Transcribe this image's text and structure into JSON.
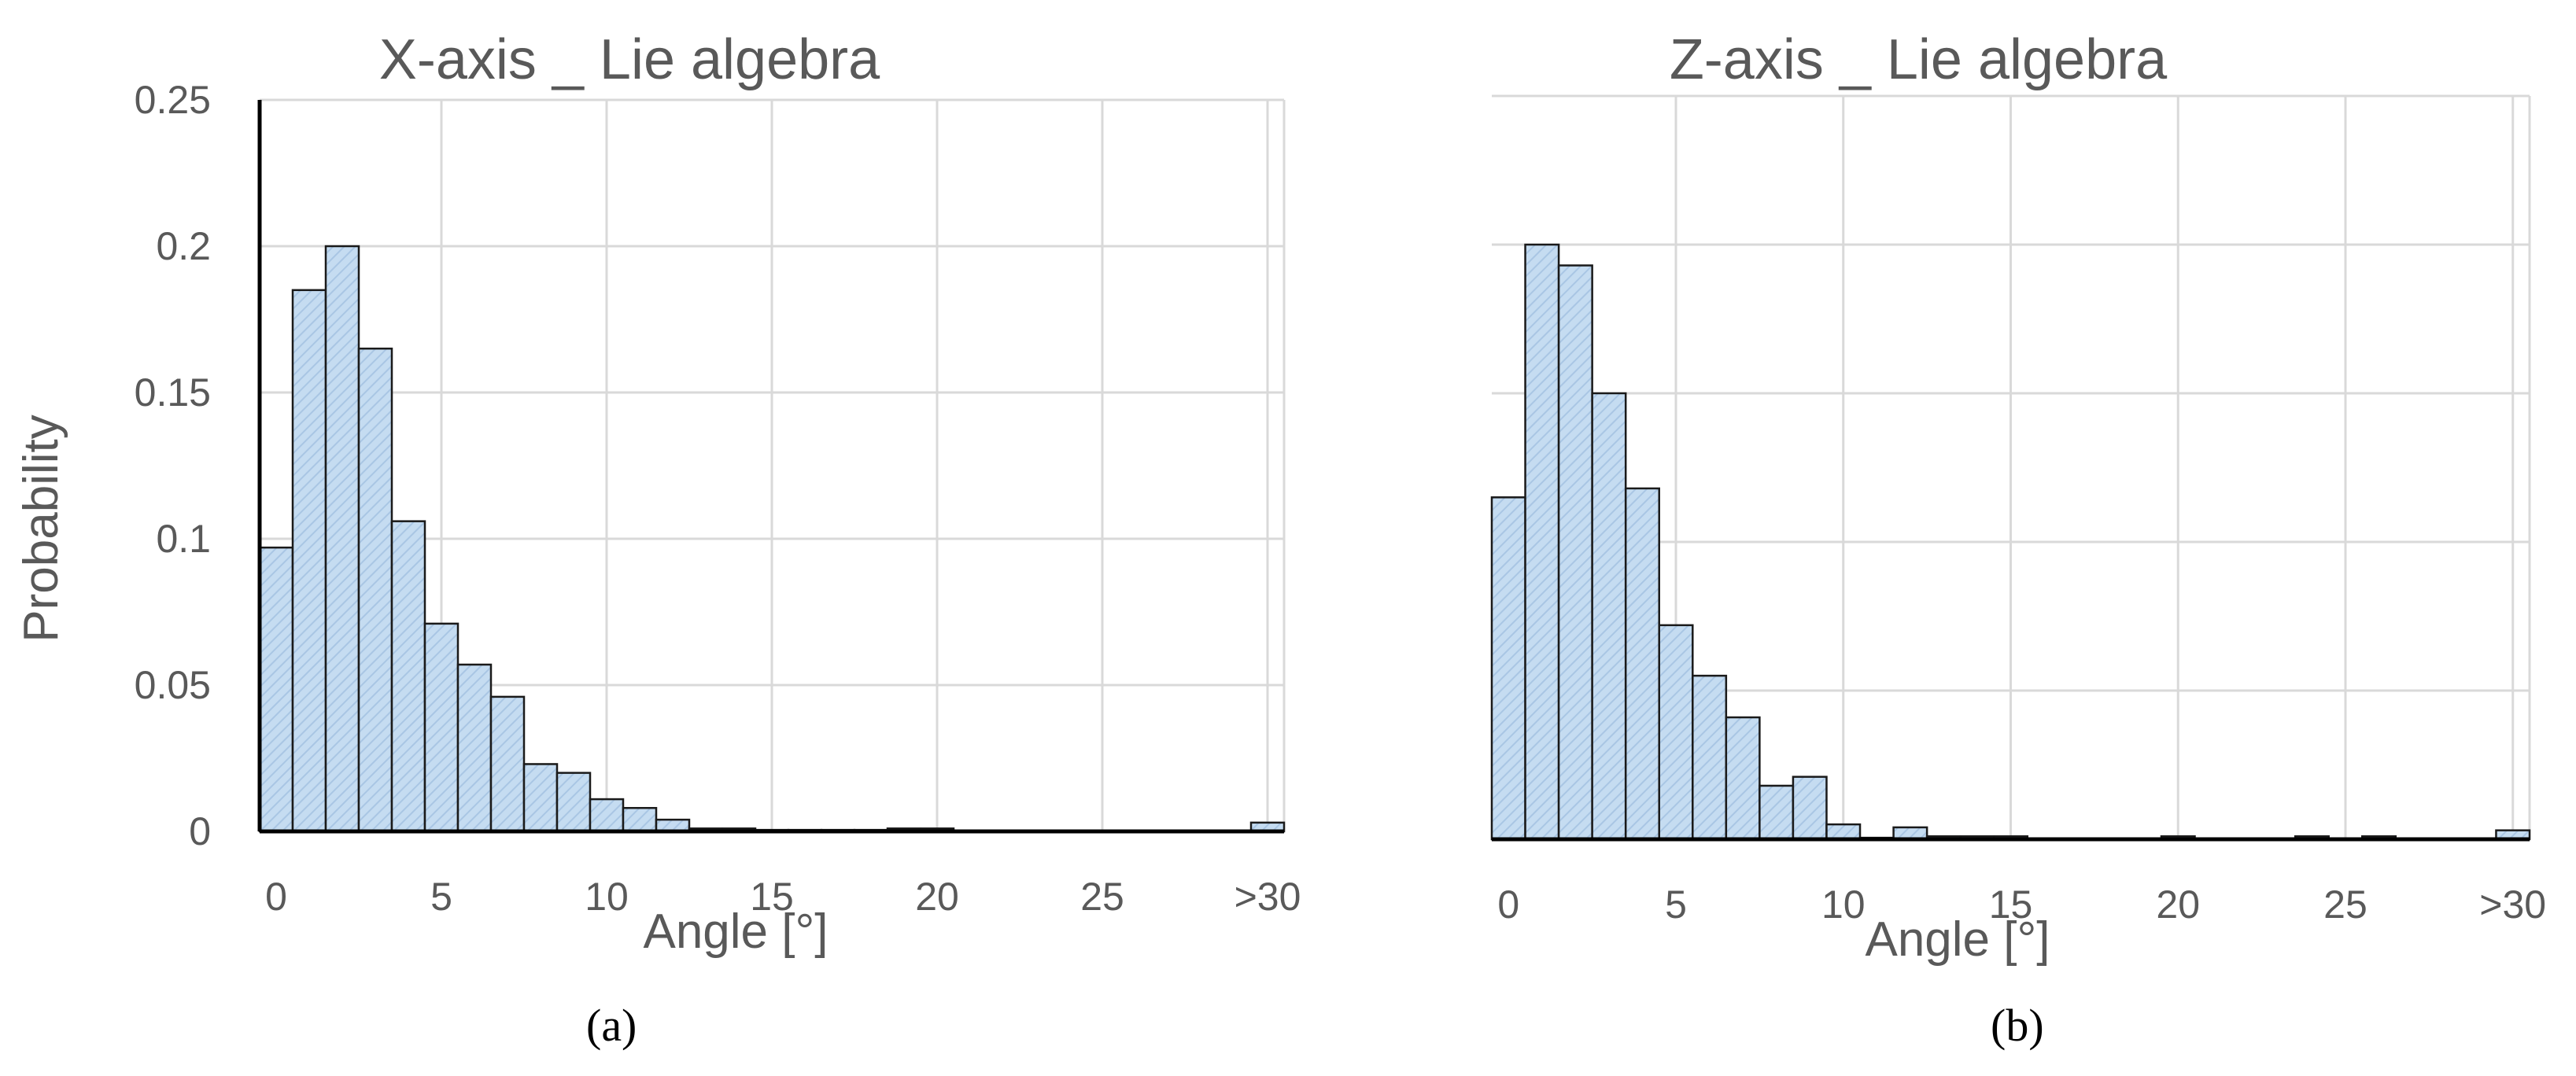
{
  "chart_data": [
    {
      "type": "bar",
      "title": "X-axis _ Lie algebra",
      "xlabel": "Angle [°]",
      "ylabel": "Probability",
      "caption": "(a)",
      "ylim": [
        0,
        0.25
      ],
      "yticks": [
        "0",
        "0.05",
        "0.1",
        "0.15",
        "0.2",
        "0.25"
      ],
      "xticks": [
        "0",
        "5",
        "10",
        "15",
        "20",
        "25",
        ">30"
      ],
      "xrange": [
        0,
        31
      ],
      "bins": [
        {
          "x0": 0,
          "x1": 1,
          "value": 0.097
        },
        {
          "x0": 1,
          "x1": 2,
          "value": 0.185
        },
        {
          "x0": 2,
          "x1": 3,
          "value": 0.2
        },
        {
          "x0": 3,
          "x1": 4,
          "value": 0.165
        },
        {
          "x0": 4,
          "x1": 5,
          "value": 0.106
        },
        {
          "x0": 5,
          "x1": 6,
          "value": 0.071
        },
        {
          "x0": 6,
          "x1": 7,
          "value": 0.057
        },
        {
          "x0": 7,
          "x1": 8,
          "value": 0.046
        },
        {
          "x0": 8,
          "x1": 9,
          "value": 0.023
        },
        {
          "x0": 9,
          "x1": 10,
          "value": 0.02
        },
        {
          "x0": 10,
          "x1": 11,
          "value": 0.011
        },
        {
          "x0": 11,
          "x1": 12,
          "value": 0.008
        },
        {
          "x0": 12,
          "x1": 13,
          "value": 0.004
        },
        {
          "x0": 13,
          "x1": 14,
          "value": 0.001
        },
        {
          "x0": 14,
          "x1": 15,
          "value": 0.001
        },
        {
          "x0": 15,
          "x1": 16,
          "value": 0.0005
        },
        {
          "x0": 16,
          "x1": 17,
          "value": 0.0005
        },
        {
          "x0": 17,
          "x1": 18,
          "value": 0.0005
        },
        {
          "x0": 18,
          "x1": 19,
          "value": 0.0005
        },
        {
          "x0": 19,
          "x1": 20,
          "value": 0.001
        },
        {
          "x0": 20,
          "x1": 21,
          "value": 0.001
        },
        {
          "x0": 21,
          "x1": 22,
          "value": 0.0003
        },
        {
          "x0": 22,
          "x1": 23,
          "value": 0.0003
        },
        {
          "x0": 23,
          "x1": 24,
          "value": 0.0003
        },
        {
          "x0": 24,
          "x1": 25,
          "value": 0.0003
        },
        {
          "x0": 25,
          "x1": 26,
          "value": 0.0003
        },
        {
          "x0": 26,
          "x1": 27,
          "value": 0.0003
        },
        {
          "x0": 27,
          "x1": 28,
          "value": 0.0003
        },
        {
          "x0": 28,
          "x1": 29,
          "value": 0.0003
        },
        {
          "x0": 29,
          "x1": 30,
          "value": 0.0003
        },
        {
          "x0": 30,
          "x1": 31,
          "value": 0.003
        }
      ],
      "colors": {
        "bar_fill": "#c5dcf1",
        "bar_hatch": "#a9c6e4",
        "bar_edge": "#1a1a1a",
        "grid": "#d9d9d9",
        "text": "#595959"
      }
    },
    {
      "type": "bar",
      "title": "Z-axis _ Lie algebra",
      "xlabel": "Angle [°]",
      "caption": "(b)",
      "ylim": [
        0,
        0.25
      ],
      "xticks": [
        "0",
        "5",
        "10",
        "15",
        "20",
        "25",
        ">30"
      ],
      "xrange": [
        0,
        31
      ],
      "bins": [
        {
          "x0": 0,
          "x1": 1,
          "value": 0.115
        },
        {
          "x0": 1,
          "x1": 2,
          "value": 0.2
        },
        {
          "x0": 2,
          "x1": 3,
          "value": 0.193
        },
        {
          "x0": 3,
          "x1": 4,
          "value": 0.15
        },
        {
          "x0": 4,
          "x1": 5,
          "value": 0.118
        },
        {
          "x0": 5,
          "x1": 6,
          "value": 0.072
        },
        {
          "x0": 6,
          "x1": 7,
          "value": 0.055
        },
        {
          "x0": 7,
          "x1": 8,
          "value": 0.041
        },
        {
          "x0": 8,
          "x1": 9,
          "value": 0.018
        },
        {
          "x0": 9,
          "x1": 10,
          "value": 0.021
        },
        {
          "x0": 10,
          "x1": 11,
          "value": 0.005
        },
        {
          "x0": 11,
          "x1": 12,
          "value": 0.0005
        },
        {
          "x0": 12,
          "x1": 13,
          "value": 0.004
        },
        {
          "x0": 13,
          "x1": 14,
          "value": 0.001
        },
        {
          "x0": 14,
          "x1": 15,
          "value": 0.001
        },
        {
          "x0": 15,
          "x1": 16,
          "value": 0.001
        },
        {
          "x0": 16,
          "x1": 17,
          "value": 0.0003
        },
        {
          "x0": 17,
          "x1": 18,
          "value": 0.0003
        },
        {
          "x0": 18,
          "x1": 19,
          "value": 0.0003
        },
        {
          "x0": 19,
          "x1": 20,
          "value": 0.0003
        },
        {
          "x0": 20,
          "x1": 21,
          "value": 0.001
        },
        {
          "x0": 21,
          "x1": 22,
          "value": 0.0003
        },
        {
          "x0": 22,
          "x1": 23,
          "value": 0.0003
        },
        {
          "x0": 23,
          "x1": 24,
          "value": 0.0003
        },
        {
          "x0": 24,
          "x1": 25,
          "value": 0.001
        },
        {
          "x0": 25,
          "x1": 26,
          "value": 0.0003
        },
        {
          "x0": 26,
          "x1": 27,
          "value": 0.001
        },
        {
          "x0": 27,
          "x1": 28,
          "value": 0.0003
        },
        {
          "x0": 28,
          "x1": 29,
          "value": 0.0003
        },
        {
          "x0": 29,
          "x1": 30,
          "value": 0.0003
        },
        {
          "x0": 30,
          "x1": 31,
          "value": 0.003
        }
      ],
      "colors": {
        "bar_fill": "#c5dcf1",
        "bar_hatch": "#a9c6e4",
        "bar_edge": "#1a1a1a",
        "grid": "#d9d9d9",
        "text": "#595959"
      }
    }
  ]
}
